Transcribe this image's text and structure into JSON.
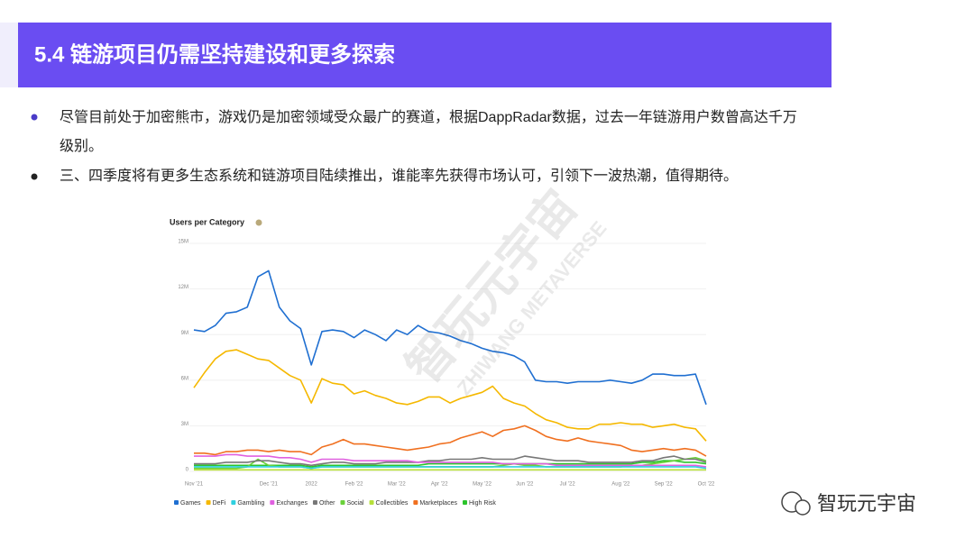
{
  "header": {
    "title": "5.4 链游项目仍需坚持建设和更多探索"
  },
  "bullets": [
    "尽管目前处于加密熊市，游戏仍是加密领域受众最广的赛道，根据DappRadar数据，过去一年链游用户数曾高达千万",
    "级别。",
    "三、四季度将有更多生态系统和链游项目陆续推出，谁能率先获得市场认可，引领下一波热潮，值得期待。"
  ],
  "watermark": [
    "智玩元宇宙",
    "ZHIWANG METAVERSE"
  ],
  "footer": {
    "brand": "智玩元宇宙"
  },
  "chart_data": {
    "type": "line",
    "title": "Users per Category",
    "categories": [
      "Nov '21",
      null,
      null,
      null,
      null,
      null,
      null,
      "Dec '21",
      null,
      null,
      null,
      "2022",
      null,
      null,
      null,
      "Feb '22",
      null,
      null,
      null,
      "Mar '22",
      null,
      null,
      null,
      "Apr '22",
      null,
      null,
      null,
      "May '22",
      null,
      null,
      null,
      "Jun '22",
      null,
      null,
      null,
      "Jul '22",
      null,
      null,
      null,
      null,
      "Aug '22",
      null,
      null,
      null,
      "Sep '22",
      null,
      null,
      null,
      "Oct '22"
    ],
    "ylim": [
      0,
      15
    ],
    "yticks": [
      0,
      {
        "value": 3,
        "label": "3M"
      },
      {
        "value": 6,
        "label": "6M"
      },
      {
        "value": 9,
        "label": "9M"
      },
      {
        "value": 12,
        "label": "12M"
      },
      {
        "value": 15,
        "label": "15M"
      }
    ],
    "grid": true,
    "legend": "bottom",
    "series": [
      {
        "name": "Games",
        "color": "#1f6fd1",
        "values": [
          9.3,
          9.2,
          9.6,
          10.4,
          10.5,
          10.8,
          12.8,
          13.2,
          10.8,
          9.9,
          9.4,
          7.0,
          9.2,
          9.3,
          9.2,
          8.8,
          9.3,
          9.0,
          8.6,
          9.3,
          9.0,
          9.6,
          9.2,
          9.1,
          8.9,
          8.6,
          8.4,
          8.1,
          7.9,
          7.8,
          7.6,
          7.2,
          6.0,
          5.9,
          5.9,
          5.8,
          5.9,
          5.9,
          5.9,
          6.0,
          5.9,
          5.8,
          6.0,
          6.4,
          6.4,
          6.3,
          6.3,
          6.4,
          4.4
        ]
      },
      {
        "name": "DeFi",
        "color": "#f5b800",
        "values": [
          5.5,
          6.5,
          7.4,
          7.9,
          8.0,
          7.7,
          7.4,
          7.3,
          6.8,
          6.3,
          6.0,
          4.5,
          6.1,
          5.8,
          5.7,
          5.1,
          5.3,
          5.0,
          4.8,
          4.5,
          4.4,
          4.6,
          4.9,
          4.9,
          4.5,
          4.8,
          5.0,
          5.2,
          5.6,
          4.8,
          4.5,
          4.3,
          3.8,
          3.4,
          3.2,
          2.9,
          2.8,
          2.8,
          3.1,
          3.1,
          3.2,
          3.1,
          3.1,
          2.9,
          3.0,
          3.1,
          2.9,
          2.8,
          2.0
        ]
      },
      {
        "name": "Gambling",
        "color": "#2fd0e0",
        "values": [
          0.3,
          0.3,
          0.3,
          0.3,
          0.3,
          0.3,
          0.3,
          0.3,
          0.3,
          0.3,
          0.3,
          0.2,
          0.3,
          0.3,
          0.3,
          0.3,
          0.3,
          0.3,
          0.3,
          0.3,
          0.3,
          0.3,
          0.3,
          0.3,
          0.3,
          0.3,
          0.3,
          0.3,
          0.3,
          0.3,
          0.3,
          0.3,
          0.3,
          0.3,
          0.3,
          0.3,
          0.3,
          0.3,
          0.3,
          0.3,
          0.3,
          0.3,
          0.3,
          0.3,
          0.3,
          0.3,
          0.3,
          0.3,
          0.2
        ]
      },
      {
        "name": "Exchanges",
        "color": "#e060e0",
        "values": [
          1.0,
          1.0,
          1.0,
          1.1,
          1.1,
          1.0,
          1.0,
          1.0,
          0.9,
          0.9,
          0.8,
          0.6,
          0.8,
          0.8,
          0.8,
          0.7,
          0.7,
          0.7,
          0.7,
          0.7,
          0.7,
          0.6,
          0.6,
          0.6,
          0.6,
          0.6,
          0.6,
          0.6,
          0.6,
          0.5,
          0.5,
          0.5,
          0.5,
          0.5,
          0.4,
          0.4,
          0.4,
          0.4,
          0.4,
          0.4,
          0.4,
          0.4,
          0.4,
          0.4,
          0.4,
          0.4,
          0.4,
          0.4,
          0.3
        ]
      },
      {
        "name": "Other",
        "color": "#777777",
        "values": [
          0.5,
          0.5,
          0.5,
          0.6,
          0.6,
          0.6,
          0.7,
          0.7,
          0.6,
          0.5,
          0.5,
          0.4,
          0.5,
          0.6,
          0.6,
          0.5,
          0.5,
          0.5,
          0.6,
          0.6,
          0.6,
          0.6,
          0.7,
          0.7,
          0.8,
          0.8,
          0.8,
          0.9,
          0.8,
          0.8,
          0.8,
          1.0,
          0.9,
          0.8,
          0.7,
          0.7,
          0.7,
          0.6,
          0.6,
          0.6,
          0.6,
          0.6,
          0.7,
          0.7,
          0.9,
          1.0,
          0.8,
          0.8,
          0.6
        ]
      },
      {
        "name": "Social",
        "color": "#6ad13a",
        "values": [
          0.2,
          0.2,
          0.2,
          0.2,
          0.2,
          0.3,
          0.8,
          0.4,
          0.3,
          0.3,
          0.3,
          0.2,
          0.3,
          0.3,
          0.3,
          0.3,
          0.3,
          0.3,
          0.3,
          0.3,
          0.3,
          0.3,
          0.3,
          0.3,
          0.3,
          0.3,
          0.3,
          0.3,
          0.3,
          0.4,
          0.5,
          0.4,
          0.4,
          0.3,
          0.3,
          0.3,
          0.3,
          0.3,
          0.3,
          0.3,
          0.3,
          0.4,
          0.4,
          0.5,
          0.6,
          0.7,
          0.8,
          0.9,
          0.7
        ]
      },
      {
        "name": "Collectibles",
        "color": "#b6e03a",
        "values": [
          0.1,
          0.1,
          0.1,
          0.1,
          0.1,
          0.1,
          0.1,
          0.1,
          0.1,
          0.1,
          0.1,
          0.1,
          0.1,
          0.1,
          0.1,
          0.1,
          0.1,
          0.1,
          0.1,
          0.1,
          0.1,
          0.1,
          0.1,
          0.1,
          0.1,
          0.1,
          0.1,
          0.1,
          0.1,
          0.1,
          0.1,
          0.1,
          0.1,
          0.1,
          0.1,
          0.1,
          0.1,
          0.1,
          0.1,
          0.1,
          0.1,
          0.1,
          0.1,
          0.1,
          0.1,
          0.1,
          0.1,
          0.1,
          0.1
        ]
      },
      {
        "name": "Marketplaces",
        "color": "#f07020",
        "values": [
          1.2,
          1.2,
          1.1,
          1.3,
          1.3,
          1.4,
          1.4,
          1.3,
          1.4,
          1.3,
          1.3,
          1.1,
          1.6,
          1.8,
          2.1,
          1.8,
          1.8,
          1.7,
          1.6,
          1.5,
          1.4,
          1.5,
          1.6,
          1.8,
          1.9,
          2.2,
          2.4,
          2.6,
          2.3,
          2.7,
          2.8,
          3.0,
          2.7,
          2.3,
          2.1,
          2.0,
          2.2,
          2.0,
          1.9,
          1.8,
          1.7,
          1.4,
          1.3,
          1.4,
          1.5,
          1.4,
          1.5,
          1.4,
          1.0
        ]
      },
      {
        "name": "High Risk",
        "color": "#2bc42b",
        "values": [
          0.4,
          0.4,
          0.4,
          0.4,
          0.4,
          0.4,
          0.4,
          0.4,
          0.4,
          0.4,
          0.4,
          0.3,
          0.4,
          0.4,
          0.4,
          0.4,
          0.4,
          0.4,
          0.4,
          0.4,
          0.4,
          0.4,
          0.5,
          0.5,
          0.5,
          0.5,
          0.5,
          0.5,
          0.5,
          0.5,
          0.5,
          0.5,
          0.5,
          0.5,
          0.5,
          0.5,
          0.5,
          0.5,
          0.5,
          0.5,
          0.5,
          0.5,
          0.6,
          0.6,
          0.7,
          0.7,
          0.6,
          0.6,
          0.5
        ]
      }
    ]
  }
}
